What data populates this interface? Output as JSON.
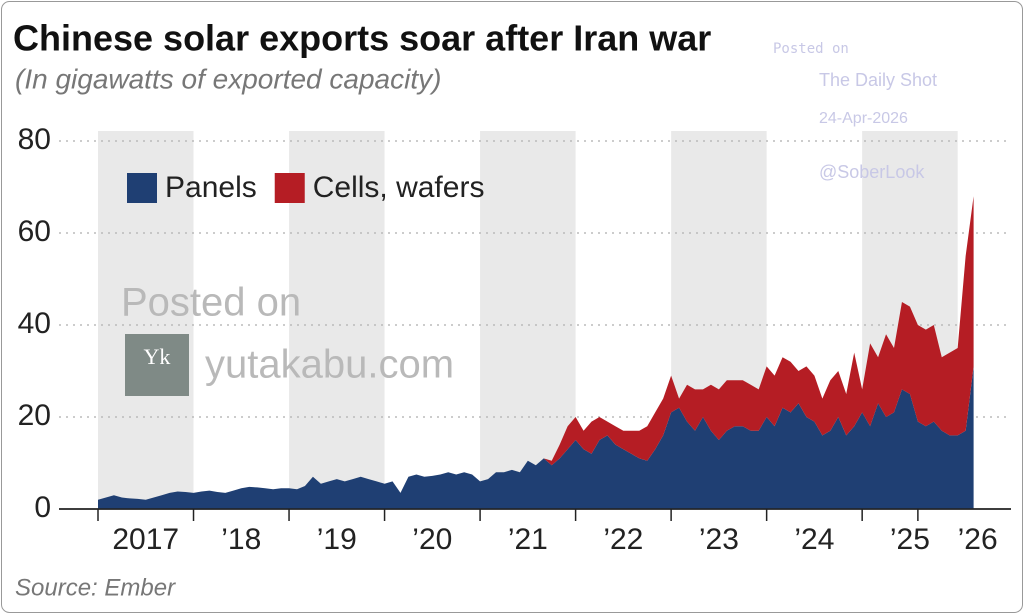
{
  "chart_data": {
    "type": "stacked_area",
    "title": "Chinese solar exports soar after Iran war",
    "subtitle": "(In gigawatts of exported capacity)",
    "source": "Source: Ember",
    "annotations": [
      "Posted on",
      "The Daily Shot",
      "24-Apr-2026",
      "@SoberLook",
      "Posted on",
      "yutakabu.com"
    ],
    "categories": [
      null,
      null,
      null,
      null,
      null,
      null,
      "2017",
      null,
      null,
      null,
      null,
      null,
      null,
      null,
      null,
      null,
      null,
      null,
      "’18",
      null,
      null,
      null,
      null,
      null,
      null,
      null,
      null,
      null,
      null,
      null,
      "’19",
      null,
      null,
      null,
      null,
      null,
      null,
      null,
      null,
      null,
      null,
      null,
      "’20",
      null,
      null,
      null,
      null,
      null,
      null,
      null,
      null,
      null,
      null,
      null,
      "’21",
      null,
      null,
      null,
      null,
      null,
      null,
      null,
      null,
      null,
      null,
      null,
      "’22",
      null,
      null,
      null,
      null,
      null,
      null,
      null,
      null,
      null,
      null,
      null,
      "’23",
      null,
      null,
      null,
      null,
      null,
      null,
      null,
      null,
      null,
      null,
      null,
      "’24",
      null,
      null,
      null,
      null,
      null,
      null,
      null,
      null,
      null,
      null,
      null,
      "’25",
      null,
      null,
      null,
      null,
      null,
      null,
      "’26",
      null
    ],
    "series": [
      {
        "name": "Panels",
        "color": "#1f3f73",
        "values": [
          2,
          2.5,
          3,
          2.5,
          2.3,
          2.2,
          2,
          2.5,
          3,
          3.5,
          3.8,
          3.7,
          3.5,
          3.8,
          4,
          3.7,
          3.5,
          4,
          4.5,
          4.8,
          4.7,
          4.5,
          4.3,
          4.5,
          4.5,
          4.3,
          5,
          7,
          5.5,
          6,
          6.5,
          6,
          6.5,
          7,
          6.5,
          6,
          5.5,
          6,
          3.5,
          7,
          7.5,
          7,
          7.2,
          7.5,
          8,
          7.5,
          8,
          7.5,
          6,
          6.5,
          8,
          8,
          8.5,
          8,
          10.5,
          9.5,
          11,
          9.5,
          11,
          13,
          15,
          13,
          12,
          15,
          16,
          14,
          13,
          12,
          11,
          10.5,
          13,
          16,
          21,
          22,
          19,
          17,
          20,
          17,
          15,
          17,
          18,
          18,
          17,
          17,
          20,
          18,
          22,
          21,
          23,
          20,
          19,
          16,
          17,
          20,
          16,
          18,
          21,
          18,
          23,
          20,
          21,
          26,
          25,
          19,
          18,
          19,
          17,
          16,
          16,
          17,
          31
        ]
      },
      {
        "name": "Cells, wafers",
        "color": "#b51d24",
        "values": [
          0,
          0,
          0,
          0,
          0,
          0,
          0,
          0,
          0,
          0,
          0,
          0,
          0,
          0,
          0,
          0,
          0,
          0,
          0,
          0,
          0,
          0,
          0,
          0,
          0,
          0,
          0,
          0,
          0,
          0,
          0,
          0,
          0,
          0,
          0,
          0,
          0,
          0,
          0,
          0,
          0,
          0,
          0,
          0,
          0,
          0,
          0,
          0,
          0,
          0,
          0,
          0,
          0,
          0,
          0,
          0,
          0,
          1,
          3,
          5,
          5,
          4,
          7,
          5,
          3,
          4,
          4,
          5,
          6,
          7.5,
          8,
          8,
          8,
          2,
          8,
          9,
          6,
          10,
          11,
          11,
          10,
          10,
          10,
          9,
          11,
          11,
          11,
          11,
          7,
          11,
          10,
          8,
          11,
          10,
          9,
          16,
          5,
          18,
          10,
          18,
          14,
          19,
          19,
          21,
          21,
          21,
          16,
          18,
          19,
          38,
          37
        ]
      }
    ],
    "ylim": [
      0,
      80
    ],
    "yticks": [
      0,
      20,
      40,
      60,
      80
    ],
    "grid": true,
    "legend": "top-left"
  }
}
